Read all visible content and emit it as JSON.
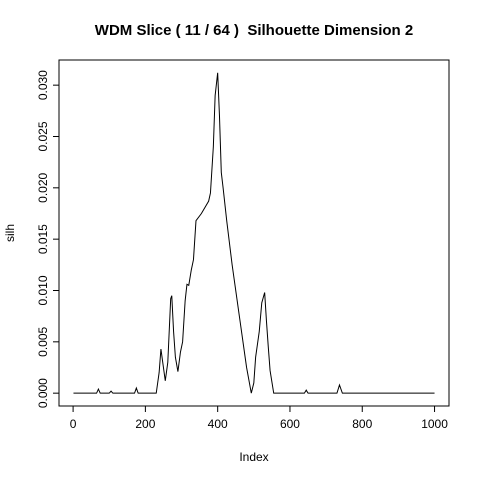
{
  "chart_data": {
    "type": "line",
    "title": "WDM Slice ( 11 / 64 )  Silhouette Dimension 2",
    "x_label": "Index",
    "y_label": "silh",
    "xlim": [
      -39,
      1040
    ],
    "ylim": [
      -0.00125,
      0.03245
    ],
    "xticks": [
      0,
      200,
      400,
      600,
      800,
      1000
    ],
    "yticks": [
      {
        "value": 0,
        "label": "0.000"
      },
      {
        "value": 0.005,
        "label": "0.005"
      },
      {
        "value": 0.01,
        "label": "0.010"
      },
      {
        "value": 0.015,
        "label": "0.015"
      },
      {
        "value": 0.02,
        "label": "0.020"
      },
      {
        "value": 0.025,
        "label": "0.025"
      },
      {
        "value": 0.03,
        "label": "0.030"
      }
    ],
    "grid": false,
    "series": [
      {
        "color": "#000000",
        "x": [
          1,
          65,
          70,
          75,
          100,
          105,
          110,
          170,
          175,
          180,
          230,
          238,
          243,
          248,
          255,
          262,
          270,
          273,
          278,
          283,
          290,
          297,
          303,
          310,
          315,
          320,
          327,
          333,
          340,
          355,
          375,
          380,
          388,
          393,
          400,
          405,
          410,
          415,
          425,
          440,
          460,
          480,
          493,
          500,
          505,
          515,
          522,
          530,
          535,
          540,
          545,
          555,
          640,
          645,
          650,
          730,
          737,
          745,
          1000
        ],
        "values": [
          0,
          0,
          0.0004,
          0,
          0,
          0.0002,
          0,
          0,
          0.0005,
          0,
          0,
          0.002,
          0.0043,
          0.003,
          0.0012,
          0.003,
          0.0092,
          0.0095,
          0.006,
          0.0035,
          0.0021,
          0.004,
          0.005,
          0.009,
          0.0106,
          0.0105,
          0.012,
          0.013,
          0.0168,
          0.0175,
          0.0187,
          0.0195,
          0.024,
          0.029,
          0.0312,
          0.027,
          0.0215,
          0.02,
          0.0168,
          0.0125,
          0.0075,
          0.0025,
          0,
          0.001,
          0.0035,
          0.006,
          0.0088,
          0.0098,
          0.007,
          0.0045,
          0.0022,
          0,
          0,
          0.0003,
          0,
          0,
          0.0008,
          0,
          0
        ]
      }
    ]
  }
}
